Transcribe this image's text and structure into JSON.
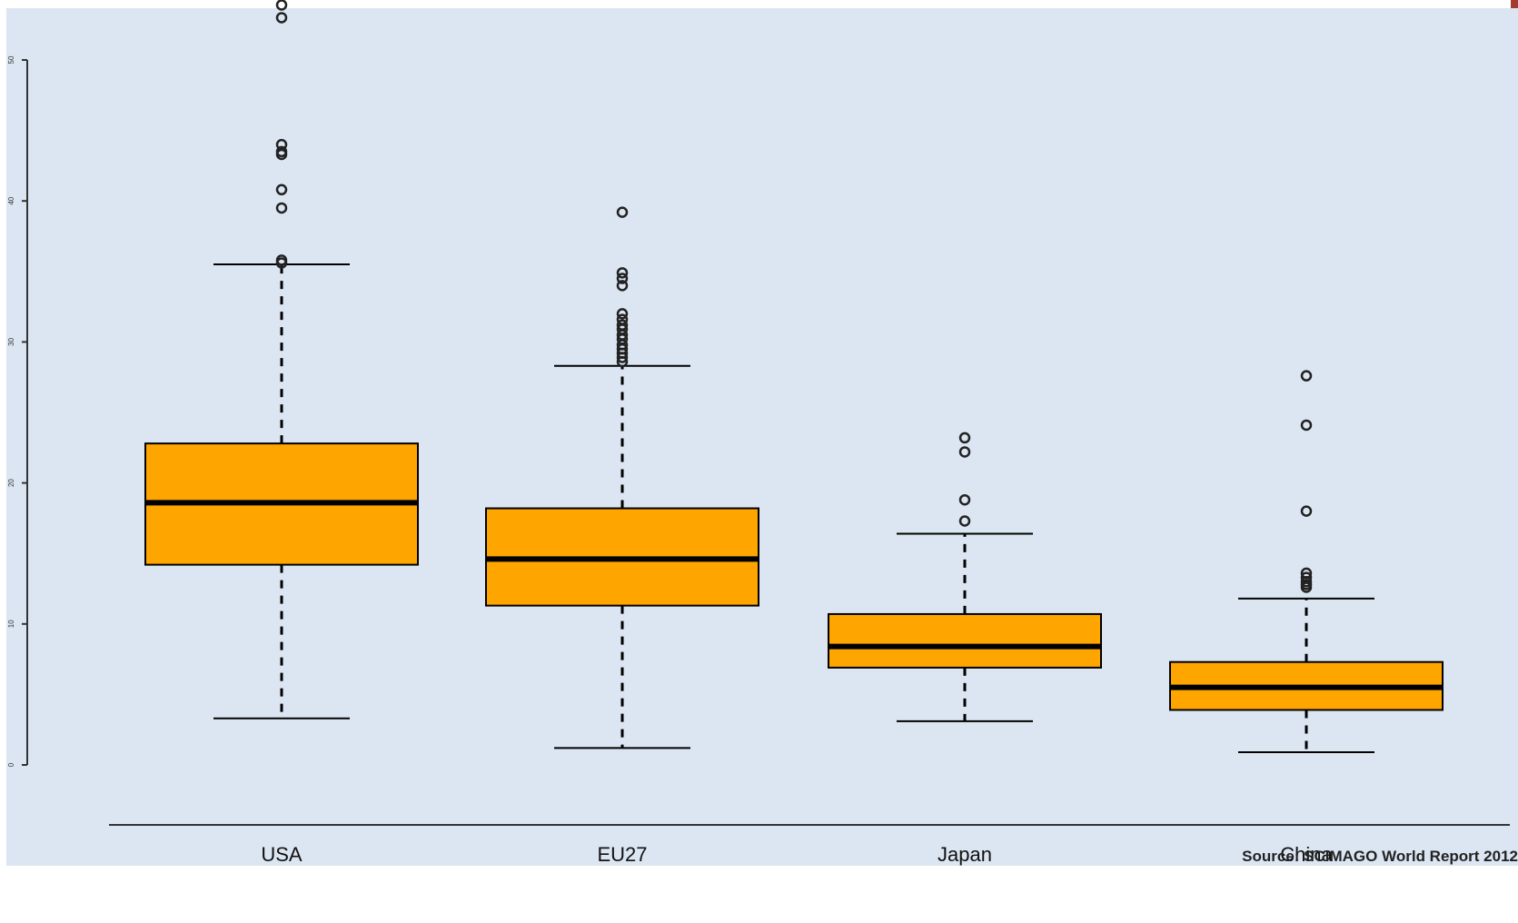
{
  "source_note": "Source: SCIMAGO World Report 2012",
  "colors": {
    "panel_background": "#dce6f2",
    "box_fill": "#ffa500",
    "stroke": "#000000"
  },
  "chart_data": {
    "type": "boxplot",
    "title": "",
    "xlabel": "",
    "ylabel": "",
    "ylim": [
      0,
      50
    ],
    "yticks": [
      0,
      10,
      20,
      30,
      40,
      50
    ],
    "grid": false,
    "categories": [
      "USA",
      "EU27",
      "Japan",
      "China"
    ],
    "boxes": [
      {
        "category": "USA",
        "whisker_low": 3.3,
        "q1": 14.2,
        "median": 18.6,
        "q3": 22.8,
        "whisker_high": 35.5,
        "outliers": [
          53.9,
          53.0,
          44.0,
          43.5,
          43.3,
          40.8,
          39.5,
          35.8,
          35.6
        ]
      },
      {
        "category": "EU27",
        "whisker_low": 1.2,
        "q1": 11.3,
        "median": 14.6,
        "q3": 18.2,
        "whisker_high": 28.3,
        "outliers": [
          39.2,
          34.9,
          34.5,
          34.0,
          32.0,
          31.6,
          31.2,
          30.9,
          30.5,
          30.2,
          29.8,
          29.5,
          29.2,
          28.9,
          28.6
        ]
      },
      {
        "category": "Japan",
        "whisker_low": 3.1,
        "q1": 6.9,
        "median": 8.4,
        "q3": 10.7,
        "whisker_high": 16.4,
        "outliers": [
          23.2,
          22.2,
          18.8,
          17.3
        ]
      },
      {
        "category": "China",
        "whisker_low": 0.9,
        "q1": 3.9,
        "median": 5.5,
        "q3": 7.3,
        "whisker_high": 11.8,
        "outliers": [
          27.6,
          24.1,
          18.0,
          13.6,
          13.3,
          13.0,
          12.8,
          12.6
        ]
      }
    ]
  }
}
